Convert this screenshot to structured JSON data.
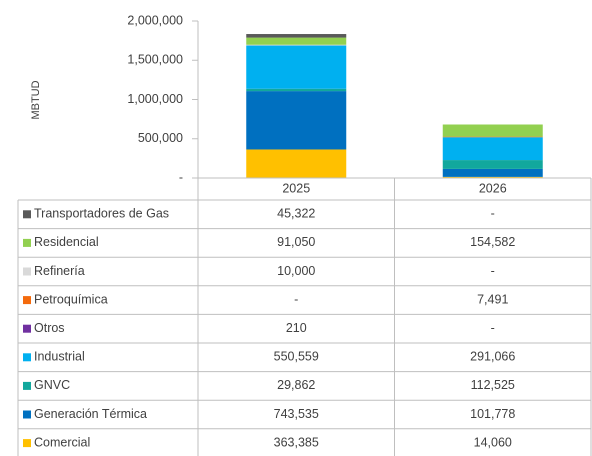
{
  "chart_data": {
    "type": "stacked_bar",
    "y_label": "MBTUD",
    "categories": [
      "2025",
      "2026"
    ],
    "series": [
      {
        "name": "Transportadores de Gas",
        "color": "#595959",
        "values": [
          45322,
          null
        ],
        "value_labels": [
          "45,322",
          "-"
        ]
      },
      {
        "name": "Residencial",
        "color": "#92d050",
        "values": [
          91050,
          154582
        ],
        "value_labels": [
          "91,050",
          "154,582"
        ]
      },
      {
        "name": "Refinería",
        "color": "#d9d9d9",
        "values": [
          10000,
          null
        ],
        "value_labels": [
          "10,000",
          "-"
        ]
      },
      {
        "name": "Petroquímica",
        "color": "#f46a0c",
        "values": [
          null,
          7491
        ],
        "value_labels": [
          "-",
          "7,491"
        ]
      },
      {
        "name": "Otros",
        "color": "#7030a0",
        "values": [
          210,
          null
        ],
        "value_labels": [
          "210",
          "-"
        ]
      },
      {
        "name": "Industrial",
        "color": "#00b0f0",
        "values": [
          550559,
          291066
        ],
        "value_labels": [
          "550,559",
          "291,066"
        ]
      },
      {
        "name": "GNVC",
        "color": "#12a89d",
        "values": [
          29862,
          112525
        ],
        "value_labels": [
          "29,862",
          "112,525"
        ]
      },
      {
        "name": "Generación Térmica",
        "color": "#0070c0",
        "values": [
          743535,
          101778
        ],
        "value_labels": [
          "743,535",
          "101,778"
        ]
      },
      {
        "name": "Comercial",
        "color": "#ffc000",
        "values": [
          363385,
          14060
        ],
        "value_labels": [
          "363,385",
          "14,060"
        ]
      }
    ],
    "ylim": [
      0,
      2000000
    ],
    "yticks": [
      {
        "value": 0,
        "label": "-"
      },
      {
        "value": 500000,
        "label": "500,000"
      },
      {
        "value": 1000000,
        "label": "1,000,000"
      },
      {
        "value": 1500000,
        "label": "1,500,000"
      },
      {
        "value": 2000000,
        "label": "2,000,000"
      }
    ],
    "grid": false
  }
}
